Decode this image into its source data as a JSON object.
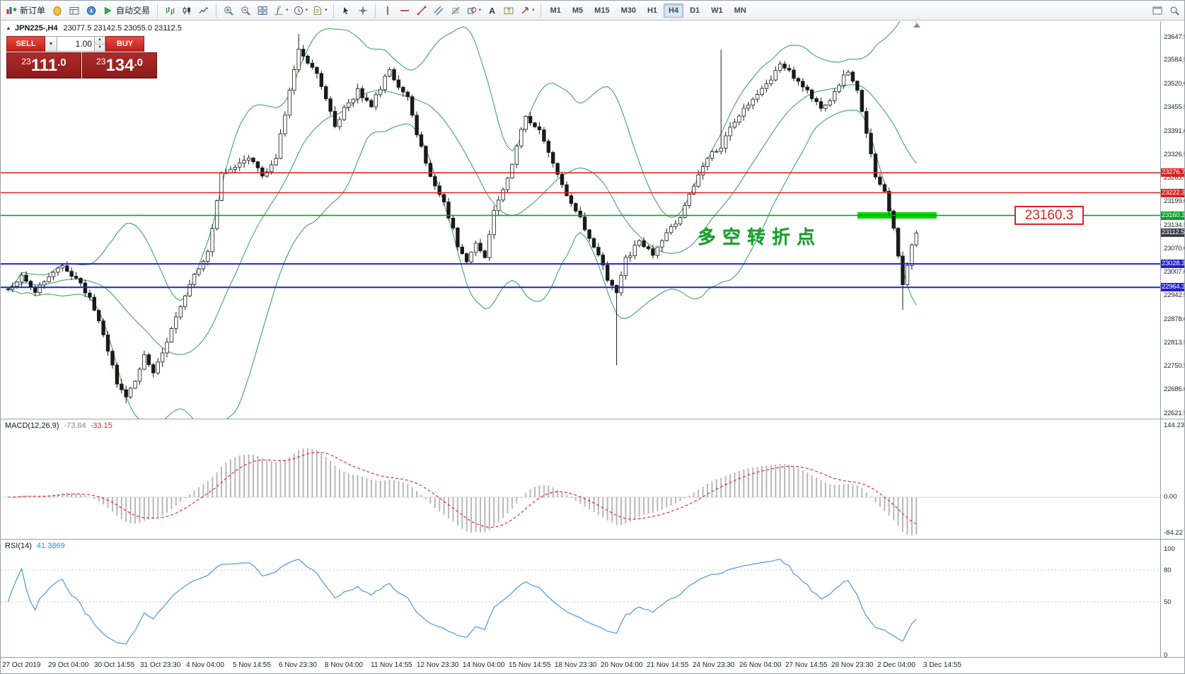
{
  "toolbar": {
    "new_order_label": "新订单",
    "autotrading_label": "自动交易",
    "timeframes": [
      "M1",
      "M5",
      "M15",
      "M30",
      "H1",
      "H4",
      "D1",
      "W1",
      "MN"
    ],
    "active_timeframe": "H4",
    "icon_groups": [
      {
        "items": [
          {
            "name": "new-order-icon",
            "label": "new_order"
          },
          {
            "name": "market-watch-icon"
          },
          {
            "name": "data-window-icon"
          },
          {
            "name": "navigator-icon"
          },
          {
            "name": "autotrading-icon",
            "label": "autotrading"
          }
        ]
      },
      {
        "items": [
          {
            "name": "bar-chart-icon"
          },
          {
            "name": "candlestick-chart-icon"
          },
          {
            "name": "line-chart-icon"
          }
        ]
      },
      {
        "items": [
          {
            "name": "zoom-in-icon"
          },
          {
            "name": "zoom-out-icon"
          },
          {
            "name": "tile-windows-icon"
          },
          {
            "name": "indicators-icon",
            "caret": true
          },
          {
            "name": "period-icon",
            "caret": true
          },
          {
            "name": "templates-icon",
            "caret": true
          }
        ]
      },
      {
        "items": [
          {
            "name": "cursor-icon"
          },
          {
            "name": "crosshair-icon"
          }
        ]
      },
      {
        "items": [
          {
            "name": "vertical-line-icon"
          },
          {
            "name": "horizontal-line-icon"
          },
          {
            "name": "trendline-icon"
          },
          {
            "name": "channel-icon"
          },
          {
            "name": "fibonacci-icon"
          },
          {
            "name": "shapes-icon",
            "caret": true
          },
          {
            "name": "text-icon"
          },
          {
            "name": "text-label-icon"
          },
          {
            "name": "arrows-icon",
            "caret": true
          }
        ]
      }
    ],
    "icons_right": [
      {
        "name": "window-icon"
      },
      {
        "name": "search-icon"
      }
    ]
  },
  "chart": {
    "symbol": "JPN225-,H4",
    "ohlc": "23077.5 23142.5 23055.0 23112.5"
  },
  "one_click": {
    "sell_label": "SELL",
    "buy_label": "BUY",
    "volume": "1.00",
    "sell_price": "23111.0",
    "buy_price": "23134.0",
    "sell_sm": "23",
    "sell_lg": "111",
    "sell_dec": ".0",
    "buy_sm": "23",
    "buy_lg": "134",
    "buy_dec": ".0"
  },
  "price_axis": {
    "ticks": [
      "23647.5",
      "23584.5",
      "23520.0",
      "23455.5",
      "23391.0",
      "23326.5",
      "23263.5",
      "23199.0",
      "23134.5",
      "23070.0",
      "23007.0",
      "22942.5",
      "22878.0",
      "22813.5",
      "22750.5",
      "22686.0",
      "22621.5"
    ]
  },
  "levels": [
    {
      "price": "23276.7",
      "color": "#e02020",
      "line": true,
      "width": 1.6
    },
    {
      "price": "23222.3",
      "color": "#e02020",
      "line": true,
      "width": 1.6
    },
    {
      "price": "23160.3",
      "color": "#00a226",
      "line": true,
      "width": 1.6
    },
    {
      "price": "23112.5",
      "color": "#3a3f48",
      "line": false,
      "width": 0
    },
    {
      "price": "23028.3",
      "color": "#2222cc",
      "line": true,
      "width": 2
    },
    {
      "price": "22964.3",
      "color": "#2222cc",
      "line": true,
      "width": 2
    }
  ],
  "annotation": {
    "text": "多空转折点",
    "callout": "23160.3",
    "text_color": "#17a02b",
    "callout_color": "#e02020",
    "zone_color": "#00d800"
  },
  "macd": {
    "name": "MACD(12,26,9)",
    "value_main": "-73.84",
    "value_signal": "-33.15",
    "scale": [
      "144.23",
      "0.00",
      "-84.22"
    ],
    "histogram_color": "#b8b8b8",
    "signal_color": "#e03030"
  },
  "rsi": {
    "name": "RSI(14)",
    "value": "41.3869",
    "scale": [
      "100",
      "80",
      "50",
      "0"
    ],
    "levels": [
      80,
      50
    ],
    "line_color": "#4a97e3"
  },
  "time_axis": {
    "labels": [
      "27 Oct 2019",
      "29 Oct 04:00",
      "30 Oct 14:55",
      "31 Oct 23:30",
      "4 Nov 04:00",
      "5 Nov 14:55",
      "6 Nov 23:30",
      "8 Nov 04:00",
      "11 Nov 14:55",
      "12 Nov 23:30",
      "14 Nov 04:00",
      "15 Nov 14:55",
      "18 Nov 23:30",
      "20 Nov 04:00",
      "21 Nov 14:55",
      "24 Nov 23:30",
      "26 Nov 04:00",
      "27 Nov 14:55",
      "28 Nov 23:30",
      "2 Dec 04:00",
      "3 Dec 14:55"
    ]
  },
  "colors": {
    "resistance": "#e02020",
    "support": "#2222cc",
    "pivot": "#00a226",
    "bollinger": "#3da56b",
    "bull_candle": "#ffffff",
    "bear_candle": "#1a1a1a",
    "candle_outline": "#1a1a1a",
    "last_price_tag": "#3a3f48"
  },
  "chart_data": {
    "type": "candlestick",
    "symbol": "JPN225-",
    "timeframe": "H4",
    "bars": 201,
    "last_close": 23112.5,
    "y_axis_range": [
      22621.5,
      23647.5
    ],
    "price_path": [
      [
        0,
        22960
      ],
      [
        3,
        22995
      ],
      [
        6,
        22950
      ],
      [
        9,
        23000
      ],
      [
        12,
        23020
      ],
      [
        15,
        22985
      ],
      [
        18,
        22940
      ],
      [
        21,
        22840
      ],
      [
        24,
        22700
      ],
      [
        26,
        22665
      ],
      [
        28,
        22715
      ],
      [
        30,
        22780
      ],
      [
        32,
        22725
      ],
      [
        34,
        22790
      ],
      [
        37,
        22880
      ],
      [
        40,
        22975
      ],
      [
        44,
        23060
      ],
      [
        47,
        23270
      ],
      [
        50,
        23290
      ],
      [
        53,
        23320
      ],
      [
        56,
        23270
      ],
      [
        59,
        23310
      ],
      [
        60,
        23380
      ],
      [
        62,
        23500
      ],
      [
        64,
        23620
      ],
      [
        66,
        23575
      ],
      [
        68,
        23545
      ],
      [
        70,
        23480
      ],
      [
        72,
        23405
      ],
      [
        74,
        23450
      ],
      [
        77,
        23500
      ],
      [
        80,
        23460
      ],
      [
        82,
        23510
      ],
      [
        84,
        23560
      ],
      [
        86,
        23510
      ],
      [
        88,
        23480
      ],
      [
        90,
        23380
      ],
      [
        93,
        23270
      ],
      [
        96,
        23200
      ],
      [
        99,
        23080
      ],
      [
        101,
        23035
      ],
      [
        103,
        23090
      ],
      [
        105,
        23050
      ],
      [
        107,
        23180
      ],
      [
        110,
        23260
      ],
      [
        112,
        23350
      ],
      [
        114,
        23430
      ],
      [
        117,
        23390
      ],
      [
        120,
        23300
      ],
      [
        123,
        23220
      ],
      [
        126,
        23150
      ],
      [
        129,
        23080
      ],
      [
        132,
        22990
      ],
      [
        134,
        22950
      ],
      [
        136,
        23040
      ],
      [
        139,
        23090
      ],
      [
        142,
        23050
      ],
      [
        145,
        23110
      ],
      [
        148,
        23160
      ],
      [
        151,
        23240
      ],
      [
        154,
        23320
      ],
      [
        157,
        23350
      ],
      [
        160,
        23420
      ],
      [
        163,
        23460
      ],
      [
        166,
        23500
      ],
      [
        168,
        23530
      ],
      [
        170,
        23575
      ],
      [
        173,
        23540
      ],
      [
        176,
        23500
      ],
      [
        179,
        23450
      ],
      [
        181,
        23480
      ],
      [
        183,
        23520
      ],
      [
        185,
        23555
      ],
      [
        187,
        23500
      ],
      [
        189,
        23380
      ],
      [
        191,
        23270
      ],
      [
        193,
        23230
      ],
      [
        195,
        23120
      ],
      [
        196,
        23050
      ],
      [
        197,
        22965
      ],
      [
        198,
        23020
      ],
      [
        199,
        23075
      ],
      [
        200,
        23112.5
      ]
    ],
    "wick_overrides": [
      {
        "bar": 26,
        "low": 22648
      },
      {
        "bar": 64,
        "high": 23655
      },
      {
        "bar": 134,
        "low": 22752
      },
      {
        "bar": 157,
        "high": 23612
      },
      {
        "bar": 197,
        "low": 22903
      }
    ],
    "indicators": [
      {
        "name": "Bollinger Bands",
        "period": 20,
        "deviation": 2
      },
      {
        "name": "MACD",
        "fast": 12,
        "slow": 26,
        "signal": 9
      },
      {
        "name": "RSI",
        "period": 14
      }
    ]
  }
}
